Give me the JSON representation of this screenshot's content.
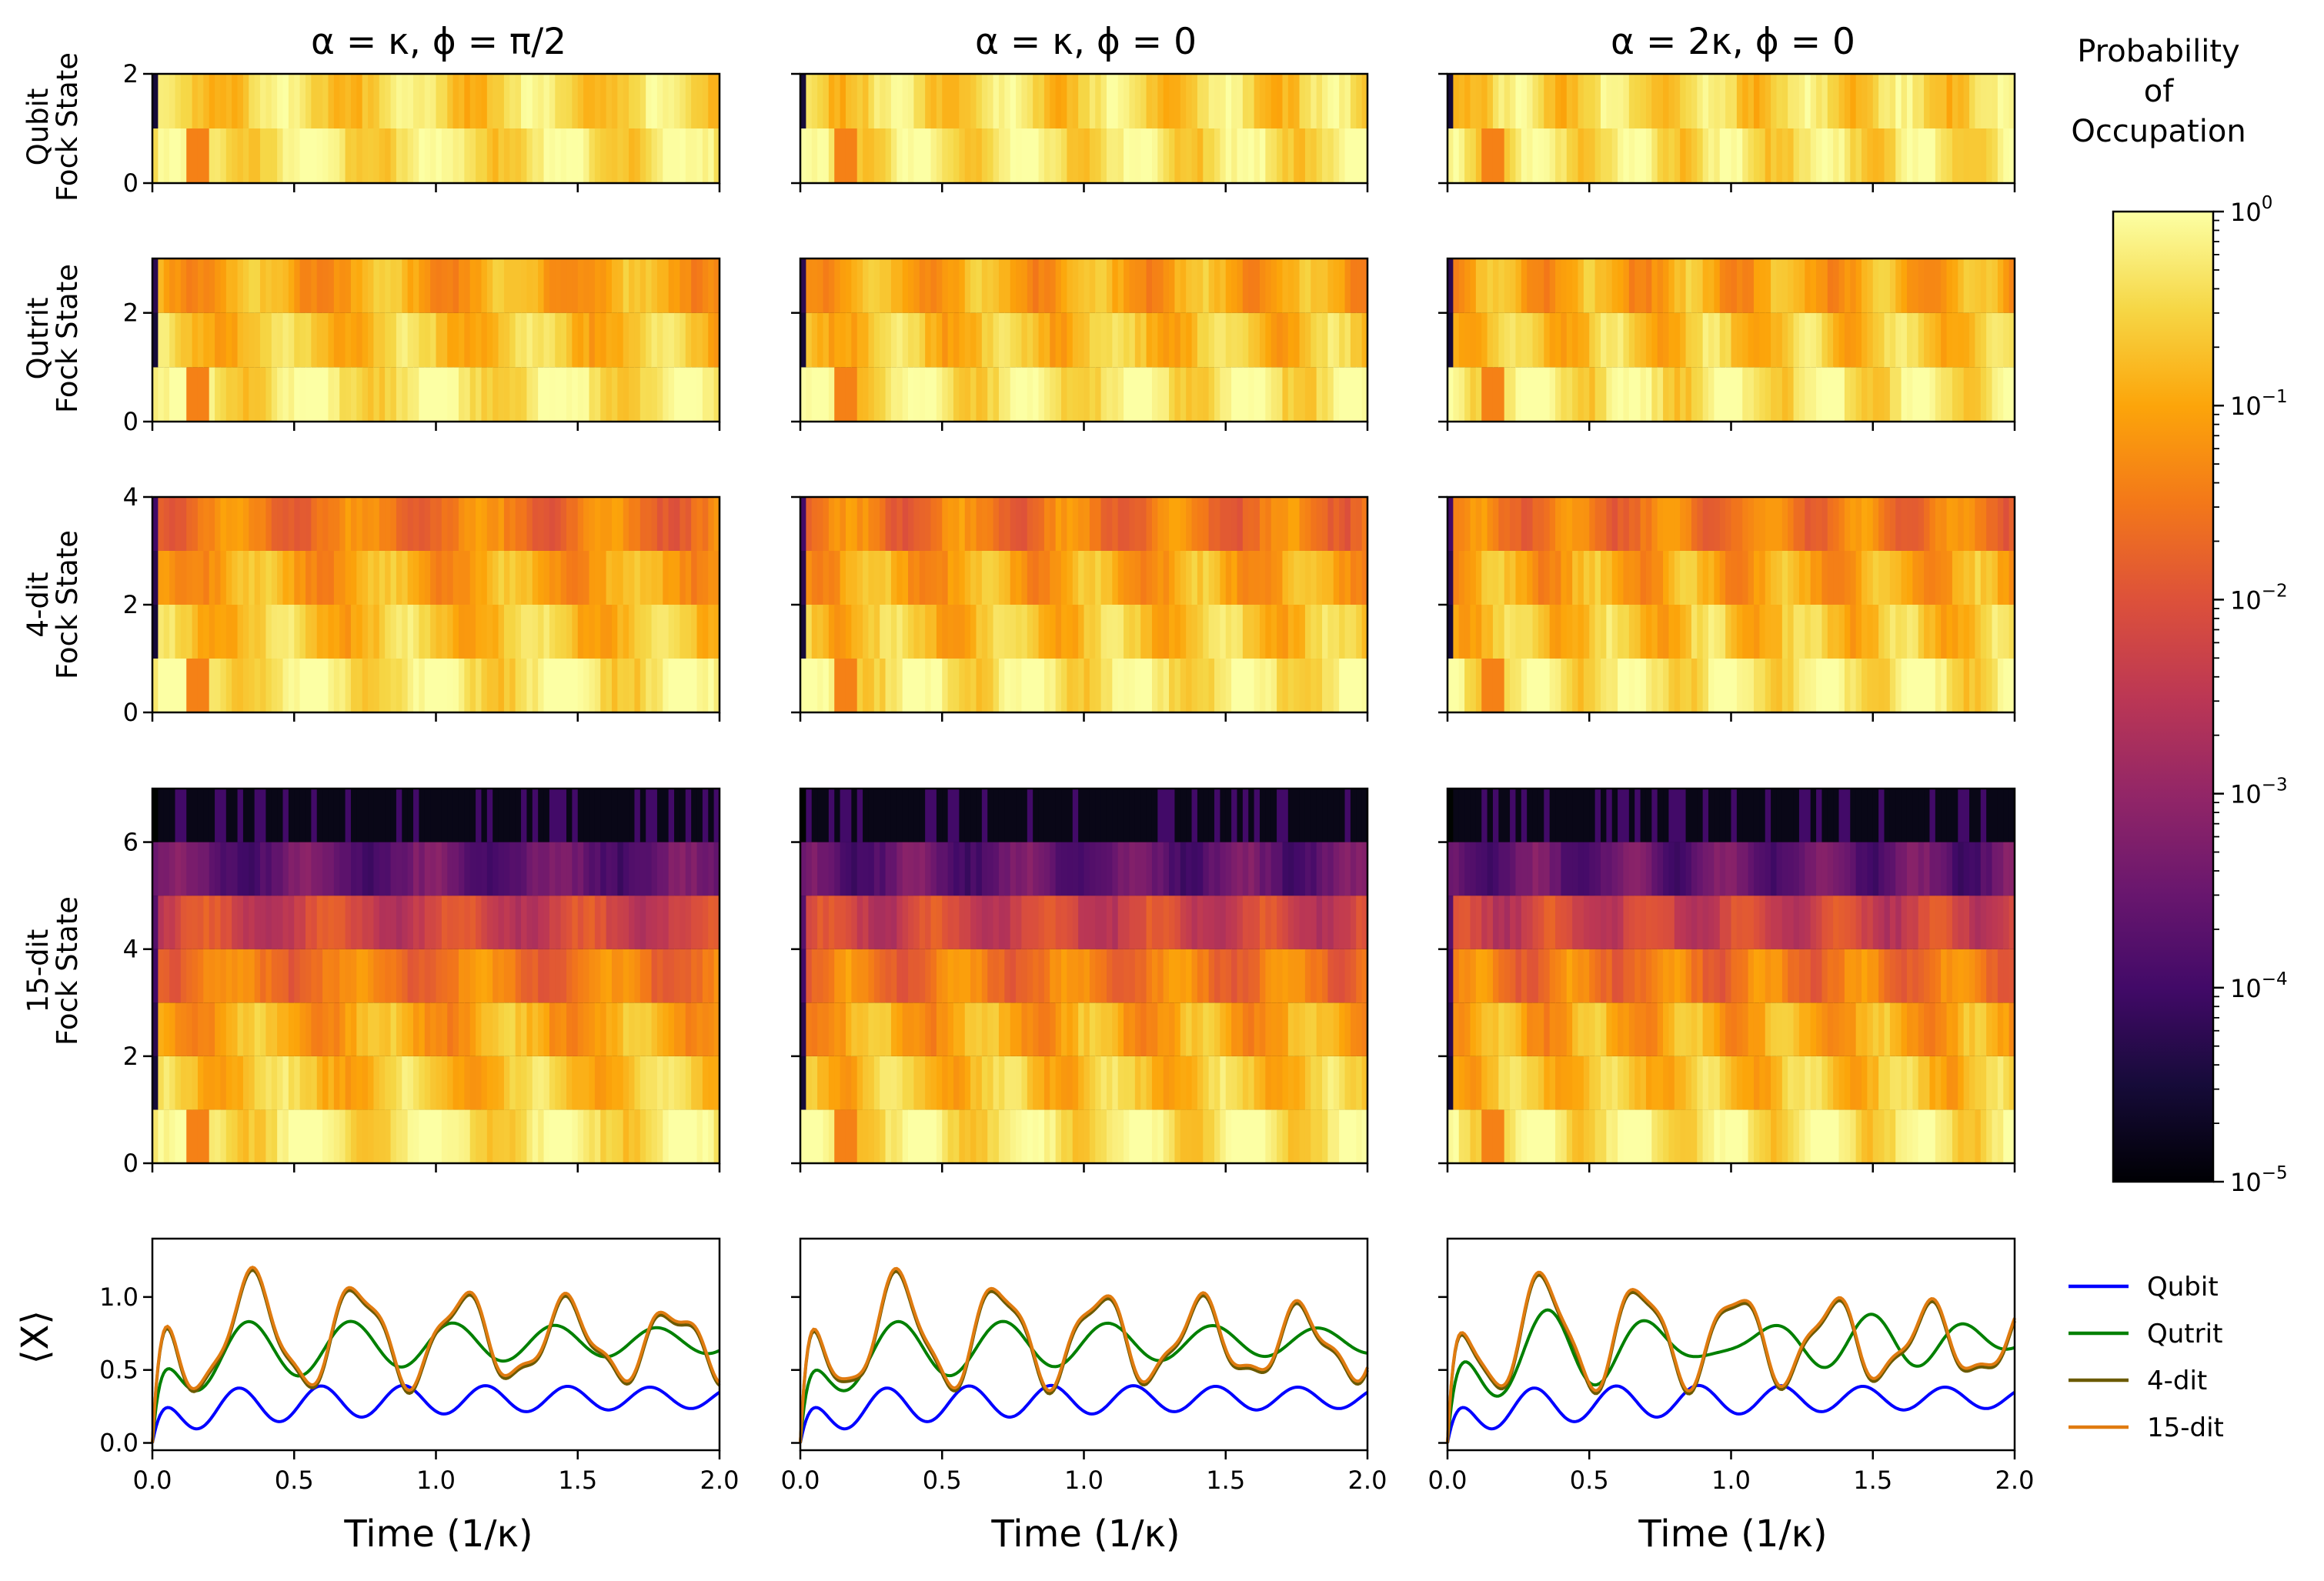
{
  "chart_data": {
    "type": "heatmap",
    "columns": [
      {
        "title": "α = κ,  ϕ = π/2",
        "drive_amplitude": "α = κ",
        "phase": "ϕ = π/2"
      },
      {
        "title": "α = κ,  ϕ = 0",
        "drive_amplitude": "α = κ",
        "phase": "ϕ = 0"
      },
      {
        "title": "α = 2κ,  ϕ = 0",
        "drive_amplitude": "α = 2κ",
        "phase": "ϕ = 0"
      }
    ],
    "heatmap_rows": [
      {
        "ylabel_line1": "Qubit",
        "ylabel_line2": "Fock State",
        "levels": 2,
        "ylim": [
          0,
          2
        ],
        "yticks": [
          "0",
          "2"
        ]
      },
      {
        "ylabel_line1": "Qutrit",
        "ylabel_line2": "Fock State",
        "levels": 3,
        "ylim": [
          0,
          3
        ],
        "yticks": [
          "0",
          "2"
        ]
      },
      {
        "ylabel_line1": "4-dit",
        "ylabel_line2": "Fock State",
        "levels": 4,
        "ylim": [
          0,
          4
        ],
        "yticks": [
          "0",
          "2",
          "4"
        ]
      },
      {
        "ylabel_line1": "15-dit",
        "ylabel_line2": "Fock State",
        "levels": 15,
        "ylim": [
          0,
          7
        ],
        "yticks": [
          "0",
          "2",
          "4",
          "6"
        ]
      }
    ],
    "xlim": [
      0,
      2
    ],
    "xticks": [
      "0.0",
      "0.5",
      "1.0",
      "1.5",
      "2.0"
    ],
    "xlabel": "Time (1/κ)",
    "colorbar": {
      "title_lines": [
        "Probability",
        "of",
        "Occupation"
      ],
      "scale": "log",
      "colormap": "inferno",
      "range": [
        1e-05,
        1
      ],
      "tick_labels": [
        {
          "base": "10",
          "exp": "0"
        },
        {
          "base": "10",
          "exp": "−1"
        },
        {
          "base": "10",
          "exp": "−2"
        },
        {
          "base": "10",
          "exp": "−3"
        },
        {
          "base": "10",
          "exp": "−4"
        },
        {
          "base": "10",
          "exp": "−5"
        }
      ]
    },
    "line_plot": {
      "type": "line",
      "ylabel": "⟨X⟩",
      "ylim": [
        -0.05,
        1.4
      ],
      "yticks": [
        "0.0",
        "0.5",
        "1.0"
      ],
      "series": [
        {
          "name": "Qubit",
          "color": "#0000ff"
        },
        {
          "name": "Qutrit",
          "color": "#008000"
        },
        {
          "name": "4-dit",
          "color": "#6b5a00"
        },
        {
          "name": "15-dit",
          "color": "#e07b10"
        }
      ]
    }
  }
}
